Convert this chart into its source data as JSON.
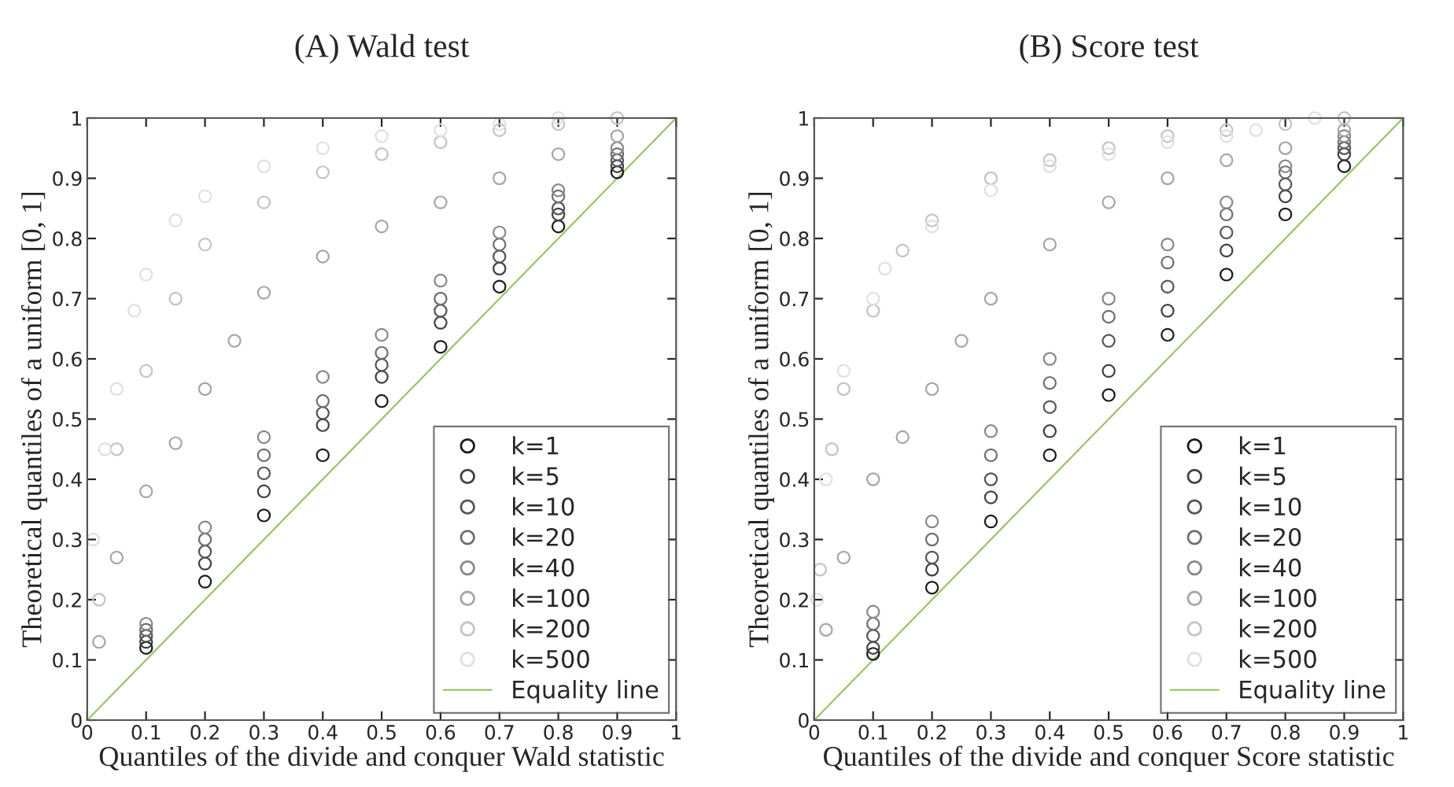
{
  "chart_data": [
    {
      "type": "scatter",
      "title": "(A) Wald test",
      "xlabel": "Quantiles of the divide and conquer Wald statistic",
      "ylabel": "Theoretical quantiles of a uniform [0, 1]",
      "xlim": [
        0,
        1
      ],
      "ylim": [
        0,
        1
      ],
      "xticks": [
        0,
        0.1,
        0.2,
        0.3,
        0.4,
        0.5,
        0.6,
        0.7,
        0.8,
        0.9,
        1
      ],
      "yticks": [
        0,
        0.1,
        0.2,
        0.3,
        0.4,
        0.5,
        0.6,
        0.7,
        0.8,
        0.9,
        1
      ],
      "grid": false,
      "legend": "bottom right",
      "marker": "circle",
      "series": [
        {
          "name": "k=1",
          "color": "#1a1a1a",
          "x": [
            0.1,
            0.2,
            0.3,
            0.4,
            0.5,
            0.6,
            0.7,
            0.8,
            0.9
          ],
          "values": [
            0.12,
            0.23,
            0.34,
            0.44,
            0.53,
            0.62,
            0.72,
            0.82,
            0.91
          ]
        },
        {
          "name": "k=5",
          "color": "#404040",
          "x": [
            0.1,
            0.2,
            0.3,
            0.4,
            0.5,
            0.6,
            0.7,
            0.8,
            0.9
          ],
          "values": [
            0.13,
            0.26,
            0.38,
            0.49,
            0.57,
            0.66,
            0.75,
            0.84,
            0.92
          ]
        },
        {
          "name": "k=10",
          "color": "#555555",
          "x": [
            0.1,
            0.2,
            0.3,
            0.4,
            0.5,
            0.6,
            0.7,
            0.8,
            0.9
          ],
          "values": [
            0.14,
            0.28,
            0.41,
            0.51,
            0.59,
            0.68,
            0.77,
            0.85,
            0.93
          ]
        },
        {
          "name": "k=20",
          "color": "#6e6e6e",
          "x": [
            0.1,
            0.2,
            0.3,
            0.4,
            0.5,
            0.6,
            0.7,
            0.8,
            0.9
          ],
          "values": [
            0.15,
            0.3,
            0.44,
            0.53,
            0.61,
            0.7,
            0.79,
            0.87,
            0.94
          ]
        },
        {
          "name": "k=40",
          "color": "#888888",
          "x": [
            0.1,
            0.2,
            0.3,
            0.4,
            0.5,
            0.6,
            0.7,
            0.8,
            0.9
          ],
          "values": [
            0.16,
            0.32,
            0.47,
            0.57,
            0.64,
            0.73,
            0.81,
            0.88,
            0.95
          ]
        },
        {
          "name": "k=100",
          "color": "#a6a6a6",
          "x": [
            0.02,
            0.05,
            0.1,
            0.15,
            0.2,
            0.25,
            0.3,
            0.4,
            0.5,
            0.6,
            0.7,
            0.8,
            0.9
          ],
          "values": [
            0.13,
            0.27,
            0.38,
            0.46,
            0.55,
            0.63,
            0.71,
            0.77,
            0.82,
            0.86,
            0.9,
            0.94,
            0.97
          ]
        },
        {
          "name": "k=200",
          "color": "#c4c4c4",
          "x": [
            0.02,
            0.05,
            0.1,
            0.15,
            0.2,
            0.3,
            0.4,
            0.5,
            0.6,
            0.7,
            0.8,
            0.9
          ],
          "values": [
            0.2,
            0.45,
            0.58,
            0.7,
            0.79,
            0.86,
            0.91,
            0.94,
            0.96,
            0.98,
            0.99,
            1
          ]
        },
        {
          "name": "k=500",
          "color": "#e0e0e0",
          "x": [
            0.01,
            0.03,
            0.05,
            0.08,
            0.1,
            0.15,
            0.2,
            0.3,
            0.4,
            0.5,
            0.6,
            0.7,
            0.8
          ],
          "values": [
            0.3,
            0.45,
            0.55,
            0.68,
            0.74,
            0.83,
            0.87,
            0.92,
            0.95,
            0.97,
            0.98,
            0.99,
            1
          ]
        },
        {
          "name": "Equality line",
          "type": "line",
          "color": "#9bc46a",
          "marker": "none",
          "x": [
            0,
            1
          ],
          "values": [
            0,
            1
          ]
        }
      ]
    },
    {
      "type": "scatter",
      "title": "(B) Score test",
      "xlabel": "Quantiles of the divide and conquer Score statistic",
      "ylabel": "Theoretical quantiles of a uniform [0, 1]",
      "xlim": [
        0,
        1
      ],
      "ylim": [
        0,
        1
      ],
      "xticks": [
        0,
        0.1,
        0.2,
        0.3,
        0.4,
        0.5,
        0.6,
        0.7,
        0.8,
        0.9,
        1
      ],
      "yticks": [
        0,
        0.1,
        0.2,
        0.3,
        0.4,
        0.5,
        0.6,
        0.7,
        0.8,
        0.9,
        1
      ],
      "grid": false,
      "legend": "bottom right",
      "marker": "circle",
      "series": [
        {
          "name": "k=1",
          "color": "#1a1a1a",
          "x": [
            0.1,
            0.2,
            0.3,
            0.4,
            0.5,
            0.6,
            0.7,
            0.8,
            0.9
          ],
          "values": [
            0.11,
            0.22,
            0.33,
            0.44,
            0.54,
            0.64,
            0.74,
            0.84,
            0.92
          ]
        },
        {
          "name": "k=5",
          "color": "#404040",
          "x": [
            0.1,
            0.2,
            0.3,
            0.4,
            0.5,
            0.6,
            0.7,
            0.8,
            0.9
          ],
          "values": [
            0.12,
            0.25,
            0.37,
            0.48,
            0.58,
            0.68,
            0.78,
            0.87,
            0.94
          ]
        },
        {
          "name": "k=10",
          "color": "#555555",
          "x": [
            0.1,
            0.2,
            0.3,
            0.4,
            0.5,
            0.6,
            0.7,
            0.8,
            0.9
          ],
          "values": [
            0.14,
            0.27,
            0.4,
            0.52,
            0.63,
            0.72,
            0.81,
            0.89,
            0.95
          ]
        },
        {
          "name": "k=20",
          "color": "#6e6e6e",
          "x": [
            0.1,
            0.2,
            0.3,
            0.4,
            0.5,
            0.6,
            0.7,
            0.8,
            0.9
          ],
          "values": [
            0.16,
            0.3,
            0.44,
            0.56,
            0.67,
            0.76,
            0.84,
            0.91,
            0.96
          ]
        },
        {
          "name": "k=40",
          "color": "#888888",
          "x": [
            0.1,
            0.2,
            0.3,
            0.4,
            0.5,
            0.6,
            0.7,
            0.8,
            0.9
          ],
          "values": [
            0.18,
            0.33,
            0.48,
            0.6,
            0.7,
            0.79,
            0.86,
            0.92,
            0.97
          ]
        },
        {
          "name": "k=100",
          "color": "#a6a6a6",
          "x": [
            0.02,
            0.05,
            0.1,
            0.15,
            0.2,
            0.25,
            0.3,
            0.4,
            0.5,
            0.6,
            0.7,
            0.8,
            0.9
          ],
          "values": [
            0.15,
            0.27,
            0.4,
            0.47,
            0.55,
            0.63,
            0.7,
            0.79,
            0.86,
            0.9,
            0.93,
            0.95,
            0.98
          ]
        },
        {
          "name": "k=200",
          "color": "#c4c4c4",
          "x": [
            0.01,
            0.03,
            0.05,
            0.1,
            0.15,
            0.2,
            0.3,
            0.4,
            0.5,
            0.6,
            0.7,
            0.8,
            0.9
          ],
          "values": [
            0.25,
            0.45,
            0.55,
            0.68,
            0.78,
            0.83,
            0.9,
            0.93,
            0.95,
            0.97,
            0.98,
            0.99,
            1
          ]
        },
        {
          "name": "k=500",
          "color": "#e0e0e0",
          "x": [
            0.005,
            0.02,
            0.05,
            0.1,
            0.12,
            0.2,
            0.3,
            0.4,
            0.5,
            0.6,
            0.7,
            0.75,
            0.85
          ],
          "values": [
            0.2,
            0.4,
            0.58,
            0.7,
            0.75,
            0.82,
            0.88,
            0.92,
            0.94,
            0.96,
            0.97,
            0.98,
            1
          ]
        },
        {
          "name": "Equality line",
          "type": "line",
          "color": "#9bc46a",
          "marker": "none",
          "x": [
            0,
            1
          ],
          "values": [
            0,
            1
          ]
        }
      ]
    }
  ]
}
